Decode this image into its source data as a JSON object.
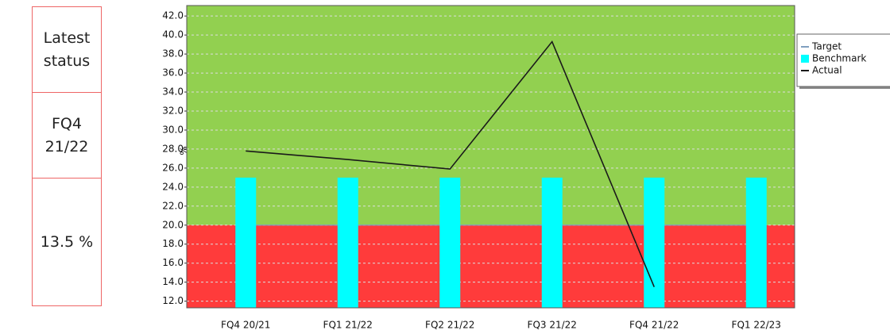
{
  "status_panel": {
    "label": "Latest status",
    "period": "FQ4 21/22",
    "value": "13.5 %"
  },
  "chart_data": {
    "type": "bar-line",
    "y_label": "%",
    "categories": [
      "FQ4 20/21",
      "FQ1 21/22",
      "FQ2 21/22",
      "FQ3 21/22",
      "FQ4 21/22",
      "FQ1 22/23"
    ],
    "series": [
      {
        "name": "Target",
        "color": "#7f9fbf",
        "kind": "line",
        "values": [
          20,
          20,
          20,
          20,
          20,
          20
        ]
      },
      {
        "name": "Benchmark",
        "color": "#00ffff",
        "kind": "bar",
        "values": [
          25,
          25,
          25,
          25,
          25,
          25
        ]
      },
      {
        "name": "Actual",
        "color": "#1a1a1a",
        "kind": "line",
        "values": [
          27.8,
          26.9,
          25.9,
          39.3,
          13.5,
          null
        ]
      }
    ],
    "below_target_color": "#ff3b3b",
    "above_target_color": "#92d050",
    "ylim": [
      11.3,
      43.1
    ],
    "yticks": [
      {
        "value": 12,
        "label": "12.0"
      },
      {
        "value": 14,
        "label": "14.0"
      },
      {
        "value": 16,
        "label": "16.0"
      },
      {
        "value": 18,
        "label": "18.0"
      },
      {
        "value": 20,
        "label": "20.0"
      },
      {
        "value": 22,
        "label": "22.0"
      },
      {
        "value": 24,
        "label": "24.0"
      },
      {
        "value": 26,
        "label": "26.0"
      },
      {
        "value": 28,
        "label": "28.0"
      },
      {
        "value": 30,
        "label": "30.0"
      },
      {
        "value": 32,
        "label": "32.0"
      },
      {
        "value": 34,
        "label": "34.0"
      },
      {
        "value": 36,
        "label": "36.0"
      },
      {
        "value": 38,
        "label": "38.0"
      },
      {
        "value": 40,
        "label": "40.0"
      },
      {
        "value": 42,
        "label": "42.0"
      }
    ],
    "grid": true
  }
}
